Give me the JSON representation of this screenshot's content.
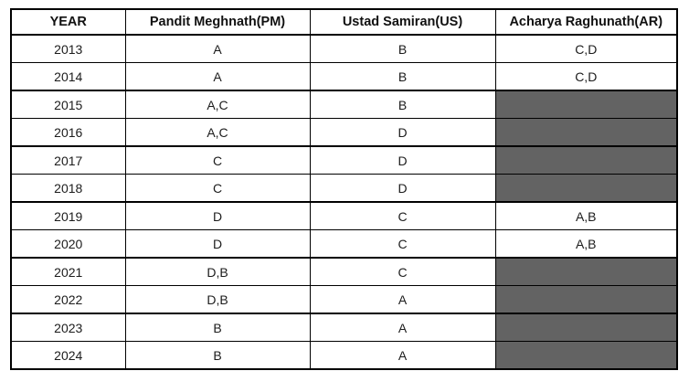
{
  "table": {
    "columns": [
      "YEAR",
      "Pandit Meghnath(PM)",
      "Ustad Samiran(US)",
      "Acharya Raghunath(AR)"
    ],
    "rows": [
      {
        "year": "2013",
        "pm": "A",
        "us": "B",
        "ar": "C,D",
        "ar_filled": false
      },
      {
        "year": "2014",
        "pm": "A",
        "us": "B",
        "ar": "C,D",
        "ar_filled": false
      },
      {
        "year": "2015",
        "pm": "A,C",
        "us": "B",
        "ar": "",
        "ar_filled": true
      },
      {
        "year": "2016",
        "pm": "A,C",
        "us": "D",
        "ar": "",
        "ar_filled": true
      },
      {
        "year": "2017",
        "pm": "C",
        "us": "D",
        "ar": "",
        "ar_filled": true
      },
      {
        "year": "2018",
        "pm": "C",
        "us": "D",
        "ar": "",
        "ar_filled": true
      },
      {
        "year": "2019",
        "pm": "D",
        "us": "C",
        "ar": "A,B",
        "ar_filled": false
      },
      {
        "year": "2020",
        "pm": "D",
        "us": "C",
        "ar": "A,B",
        "ar_filled": false
      },
      {
        "year": "2021",
        "pm": "D,B",
        "us": "C",
        "ar": "",
        "ar_filled": true
      },
      {
        "year": "2022",
        "pm": "D,B",
        "us": "A",
        "ar": "",
        "ar_filled": true
      },
      {
        "year": "2023",
        "pm": "B",
        "us": "A",
        "ar": "",
        "ar_filled": true
      },
      {
        "year": "2024",
        "pm": "B",
        "us": "A",
        "ar": "",
        "ar_filled": true
      }
    ]
  },
  "colors": {
    "filled_cell": "#636363",
    "border": "#000000",
    "text": "#1c1c1c",
    "header_text": "#111111",
    "background": "#ffffff"
  },
  "chart_data": {
    "type": "table",
    "title": "",
    "columns": [
      "YEAR",
      "Pandit Meghnath(PM)",
      "Ustad Samiran(US)",
      "Acharya Raghunath(AR)"
    ],
    "rows": [
      [
        "2013",
        "A",
        "B",
        "C,D"
      ],
      [
        "2014",
        "A",
        "B",
        "C,D"
      ],
      [
        "2015",
        "A,C",
        "B",
        ""
      ],
      [
        "2016",
        "A,C",
        "D",
        ""
      ],
      [
        "2017",
        "C",
        "D",
        ""
      ],
      [
        "2018",
        "C",
        "D",
        ""
      ],
      [
        "2019",
        "D",
        "C",
        "A,B"
      ],
      [
        "2020",
        "D",
        "C",
        "A,B"
      ],
      [
        "2021",
        "D,B",
        "C",
        ""
      ],
      [
        "2022",
        "D,B",
        "A",
        ""
      ],
      [
        "2023",
        "B",
        "A",
        ""
      ],
      [
        "2024",
        "B",
        "A",
        ""
      ]
    ],
    "shaded_cells_column": "Acharya Raghunath(AR)",
    "shaded_cells_years": [
      "2015",
      "2016",
      "2017",
      "2018",
      "2021",
      "2022",
      "2023",
      "2024"
    ],
    "layout_hints": "black grid borders, paired-row thicker separators, shaded cells dark gray #636363"
  }
}
